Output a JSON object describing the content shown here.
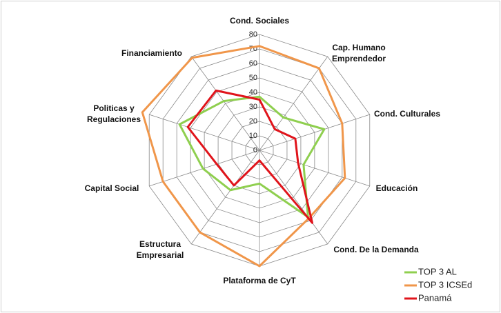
{
  "chart_data": {
    "type": "radar",
    "categories": [
      "Cond. Sociales",
      "Cap. Humano Emprendedor",
      "Cond. Culturales",
      "Educación",
      "Cond. De la Demanda",
      "Plataforma de CyT",
      "Estructura Empresarial",
      "Capital Social",
      "Politicas y Regulaciones",
      "Financiamiento"
    ],
    "ylim": [
      0,
      80
    ],
    "yticks": [
      0,
      10,
      20,
      30,
      40,
      50,
      60,
      70,
      80
    ],
    "grid": true,
    "legend": "bottom-right",
    "series": [
      {
        "name": "TOP 3 AL",
        "color": "#8fcf4f",
        "values": [
          37,
          28,
          47,
          32,
          57,
          23,
          34,
          41,
          58,
          42
        ]
      },
      {
        "name": "TOP 3 ICSEd",
        "color": "#f0964a",
        "values": [
          72,
          70,
          60,
          62,
          58,
          80,
          70,
          70,
          85,
          79
        ]
      },
      {
        "name": "Panamá",
        "color": "#e0141b",
        "values": [
          35,
          18,
          26,
          28,
          62,
          7,
          30,
          31,
          52,
          51
        ]
      }
    ]
  }
}
